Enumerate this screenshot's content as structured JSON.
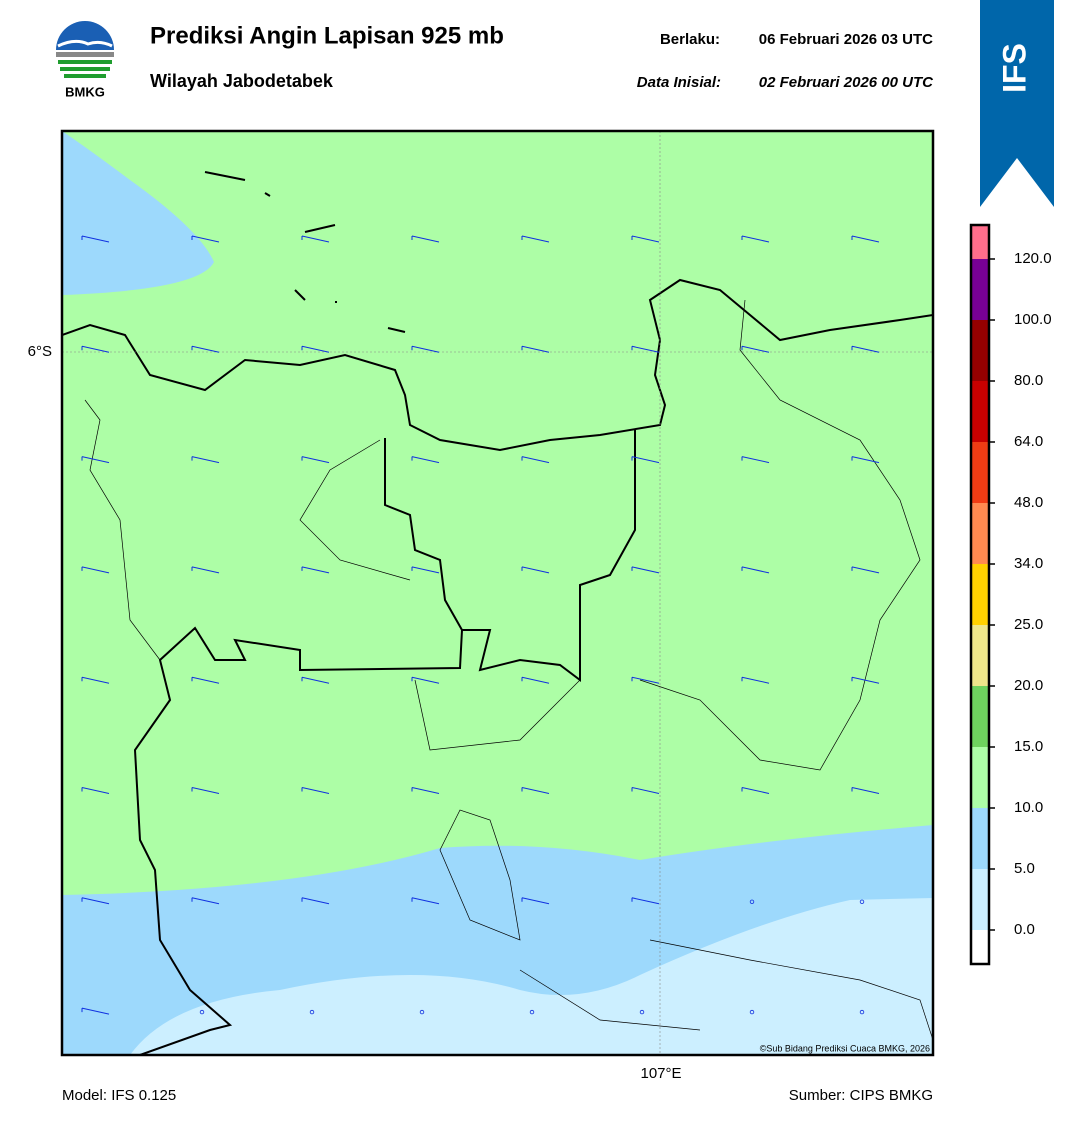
{
  "header": {
    "logo_text": "BMKG",
    "title": "Prediksi Angin Lapisan 925 mb",
    "subtitle": "Wilayah Jabodetabek",
    "valid_label": "Berlaku:",
    "valid_time": "06 Februari 2026 03 UTC",
    "init_label": "Data Inisial:",
    "init_time": "02 Februari 2026 00 UTC",
    "badge": "IFS"
  },
  "map": {
    "lat_label": "6°S",
    "lon_label": "107°E",
    "copyright": "©Sub Bidang Prediksi Cuaca BMKG, 2026"
  },
  "colorbar": {
    "ticks": [
      "0.0",
      "5.0",
      "10.0",
      "15.0",
      "20.0",
      "25.0",
      "34.0",
      "48.0",
      "64.0",
      "80.0",
      "100.0",
      "120.0"
    ],
    "colors": [
      "#ffffff",
      "#ccefff",
      "#9dd9fc",
      "#adfea6",
      "#6fd35e",
      "#eee68a",
      "#ffd000",
      "#ff8a50",
      "#f03c14",
      "#c80000",
      "#960000",
      "#780096",
      "#ff6e8c"
    ]
  },
  "footer": {
    "model": "Model: IFS 0.125",
    "source": "Sumber: CIPS BMKG"
  }
}
